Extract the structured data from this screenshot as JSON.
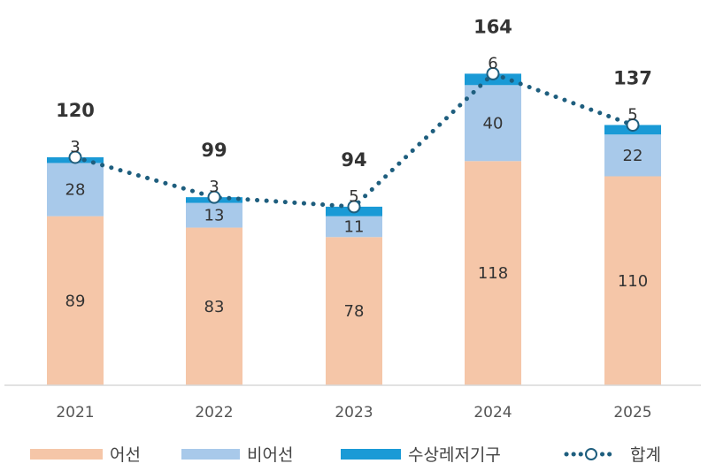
{
  "chart_data": {
    "type": "bar",
    "stacked": true,
    "title": "",
    "xlabel": "",
    "ylabel": "",
    "categories": [
      "2021",
      "2022",
      "2023",
      "2024",
      "2025"
    ],
    "series": [
      {
        "name": "어선",
        "values": [
          89,
          83,
          78,
          118,
          110
        ],
        "color": "#F5C6A8"
      },
      {
        "name": "비어선",
        "values": [
          28,
          13,
          11,
          40,
          22
        ],
        "color": "#A8C9EA"
      },
      {
        "name": "수상레저기구",
        "values": [
          3,
          3,
          5,
          6,
          5
        ],
        "color": "#1A9AD6"
      }
    ],
    "line_series": {
      "name": "합계",
      "values": [
        120,
        99,
        94,
        164,
        137
      ],
      "color": "#1E5E7E",
      "style": "dotted-with-circle-markers"
    },
    "ylim": [
      0,
      164
    ],
    "grid": false,
    "legend": "bottom"
  }
}
